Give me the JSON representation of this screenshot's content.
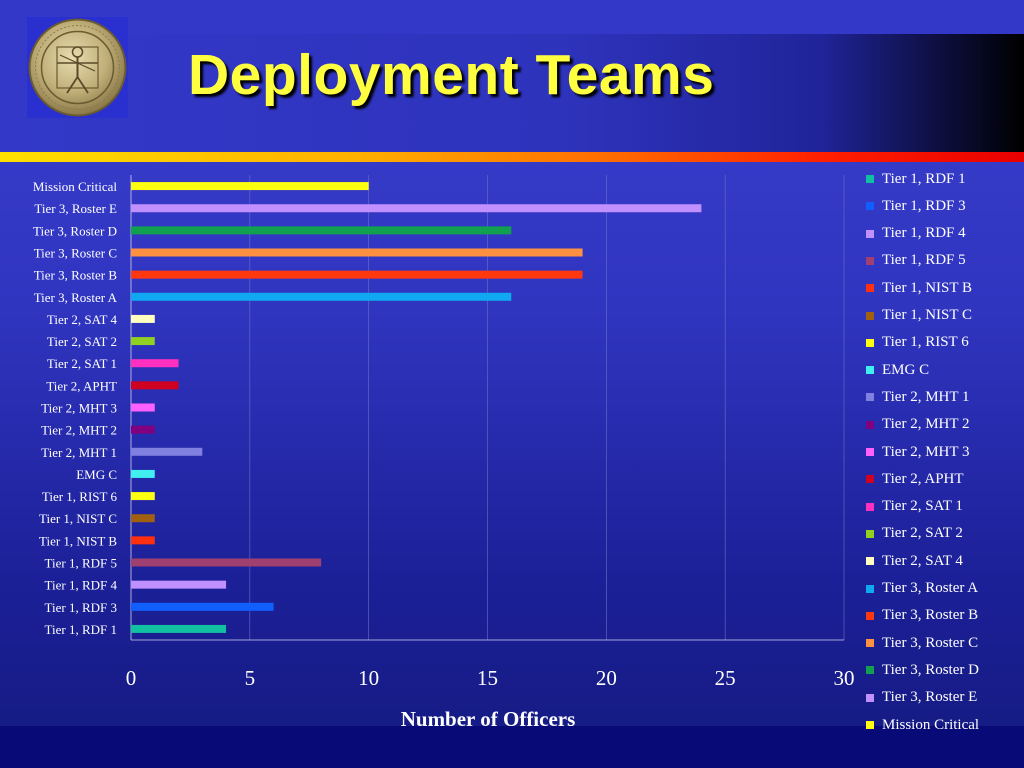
{
  "slide": {
    "title": "Deployment Teams",
    "seal_icon": "vitruvian-man-seal-icon"
  },
  "colors": {
    "title": "#ffff40",
    "background": "#3035c0",
    "stripe_start": "#ffe000",
    "stripe_end": "#e80000"
  },
  "chart_data": {
    "type": "bar",
    "orientation": "horizontal",
    "title": "",
    "xlabel": "Number of Officers",
    "ylabel": "",
    "xlim": [
      0,
      30
    ],
    "xticks": [
      0,
      5,
      10,
      15,
      20,
      25,
      30
    ],
    "grid": true,
    "legend_position": "right",
    "categories": [
      "Tier 1, RDF 1",
      "Tier 1, RDF 3",
      "Tier 1, RDF 4",
      "Tier 1, RDF 5",
      "Tier 1, NIST B",
      "Tier 1, NIST C",
      "Tier 1, RIST 6",
      "EMG C",
      "Tier 2, MHT 1",
      "Tier 2, MHT 2",
      "Tier 2, MHT 3",
      "Tier 2, APHT",
      "Tier 2, SAT 1",
      "Tier 2, SAT 2",
      "Tier 2, SAT 4",
      "Tier 3, Roster A",
      "Tier 3, Roster B",
      "Tier 3, Roster C",
      "Tier 3, Roster D",
      "Tier 3, Roster E",
      "Mission Critical"
    ],
    "values": [
      4,
      6,
      4,
      8,
      1,
      1,
      1,
      1,
      3,
      1,
      1,
      2,
      2,
      1,
      1,
      16,
      19,
      19,
      16,
      24,
      10
    ],
    "colors": [
      "#10c0a0",
      "#1060ff",
      "#c090ff",
      "#a04070",
      "#ff3010",
      "#a06010",
      "#ffff10",
      "#40f0f0",
      "#8080e0",
      "#800080",
      "#ff60ff",
      "#d00020",
      "#ff30c0",
      "#90d020",
      "#ffffc0",
      "#10a8f0",
      "#ff3810",
      "#ff9040",
      "#10a050",
      "#c090ff",
      "#ffff10"
    ]
  }
}
